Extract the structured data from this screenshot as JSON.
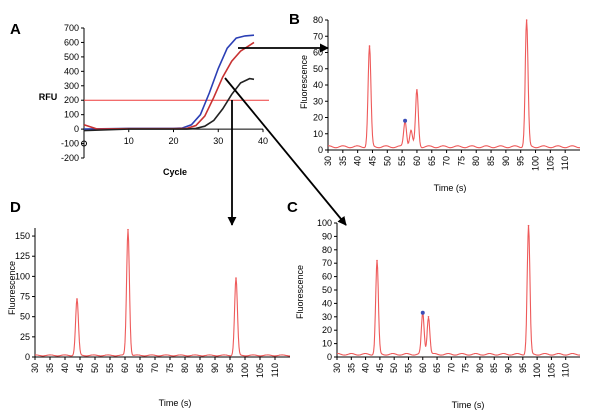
{
  "colors": {
    "trace": "#ee5a5a",
    "peak_marker": "#3c4fb8",
    "threshold": "#ee3b3b",
    "amp_blue": "#2b3fb5",
    "amp_red": "#c83232",
    "amp_black": "#222222",
    "axis": "#000000",
    "arrow": "#000000"
  },
  "chart_data": [
    {
      "panel": "A",
      "type": "line",
      "xlabel": "Cycle",
      "ylabel": "RFU",
      "xlim": [
        0,
        40
      ],
      "ylim": [
        -200,
        700
      ],
      "x_ticks": [
        10,
        20,
        30,
        40
      ],
      "y_ticks": [
        -200,
        -100,
        0,
        100,
        200,
        300,
        400,
        500,
        600,
        700
      ],
      "threshold": 200,
      "series": [
        {
          "color_key": "amp_blue",
          "points": [
            [
              0,
              0
            ],
            [
              10,
              5
            ],
            [
              20,
              5
            ],
            [
              22,
              8
            ],
            [
              24,
              30
            ],
            [
              26,
              100
            ],
            [
              28,
              250
            ],
            [
              30,
              420
            ],
            [
              32,
              560
            ],
            [
              34,
              630
            ],
            [
              36,
              645
            ],
            [
              38,
              650
            ]
          ]
        },
        {
          "color_key": "amp_red",
          "points": [
            [
              0,
              30
            ],
            [
              3,
              0
            ],
            [
              10,
              3
            ],
            [
              20,
              3
            ],
            [
              23,
              5
            ],
            [
              25,
              25
            ],
            [
              27,
              90
            ],
            [
              29,
              220
            ],
            [
              31,
              360
            ],
            [
              33,
              470
            ],
            [
              35,
              540
            ],
            [
              37,
              580
            ],
            [
              38,
              600
            ]
          ]
        },
        {
          "color_key": "amp_black",
          "points": [
            [
              0,
              -10
            ],
            [
              10,
              0
            ],
            [
              20,
              0
            ],
            [
              23,
              0
            ],
            [
              25,
              5
            ],
            [
              27,
              20
            ],
            [
              29,
              60
            ],
            [
              31,
              140
            ],
            [
              33,
              240
            ],
            [
              35,
              320
            ],
            [
              37,
              350
            ],
            [
              38,
              345
            ]
          ]
        }
      ]
    },
    {
      "panel": "B",
      "type": "line",
      "xlabel": "Time (s)",
      "ylabel": "Fluorescence",
      "xlim": [
        30,
        115
      ],
      "ylim": [
        0,
        80
      ],
      "x_ticks": [
        30,
        35,
        40,
        45,
        50,
        55,
        60,
        65,
        70,
        75,
        80,
        85,
        90,
        95,
        100,
        105,
        110
      ],
      "y_ticks": [
        0,
        10,
        20,
        30,
        40,
        50,
        60,
        70,
        80
      ],
      "peaks": [
        {
          "x": 44,
          "height": 64
        },
        {
          "x": 56,
          "height": 18
        },
        {
          "x": 58,
          "height": 12
        },
        {
          "x": 60,
          "height": 37
        },
        {
          "x": 97,
          "height": 80
        }
      ],
      "marked_peak_x": 56
    },
    {
      "panel": "C",
      "type": "line",
      "xlabel": "Time (s)",
      "ylabel": "Fluorescence",
      "xlim": [
        30,
        115
      ],
      "ylim": [
        0,
        100
      ],
      "x_ticks": [
        30,
        35,
        40,
        45,
        50,
        55,
        60,
        65,
        70,
        75,
        80,
        85,
        90,
        95,
        100,
        105,
        110
      ],
      "y_ticks": [
        0,
        10,
        20,
        30,
        40,
        50,
        60,
        70,
        80,
        90,
        100
      ],
      "peaks": [
        {
          "x": 44,
          "height": 72
        },
        {
          "x": 60,
          "height": 33
        },
        {
          "x": 62,
          "height": 30
        },
        {
          "x": 97,
          "height": 98
        }
      ],
      "marked_peak_x": 60
    },
    {
      "panel": "D",
      "type": "line",
      "xlabel": "Time (s)",
      "ylabel": "Fluorescence",
      "xlim": [
        30,
        115
      ],
      "ylim": [
        0,
        160
      ],
      "x_ticks": [
        30,
        35,
        40,
        45,
        50,
        55,
        60,
        65,
        70,
        75,
        80,
        85,
        90,
        95,
        100,
        105,
        110
      ],
      "y_ticks": [
        0,
        25,
        50,
        75,
        100,
        125,
        150
      ],
      "peaks": [
        {
          "x": 44,
          "height": 72
        },
        {
          "x": 61,
          "height": 158
        },
        {
          "x": 97,
          "height": 98
        }
      ]
    }
  ]
}
